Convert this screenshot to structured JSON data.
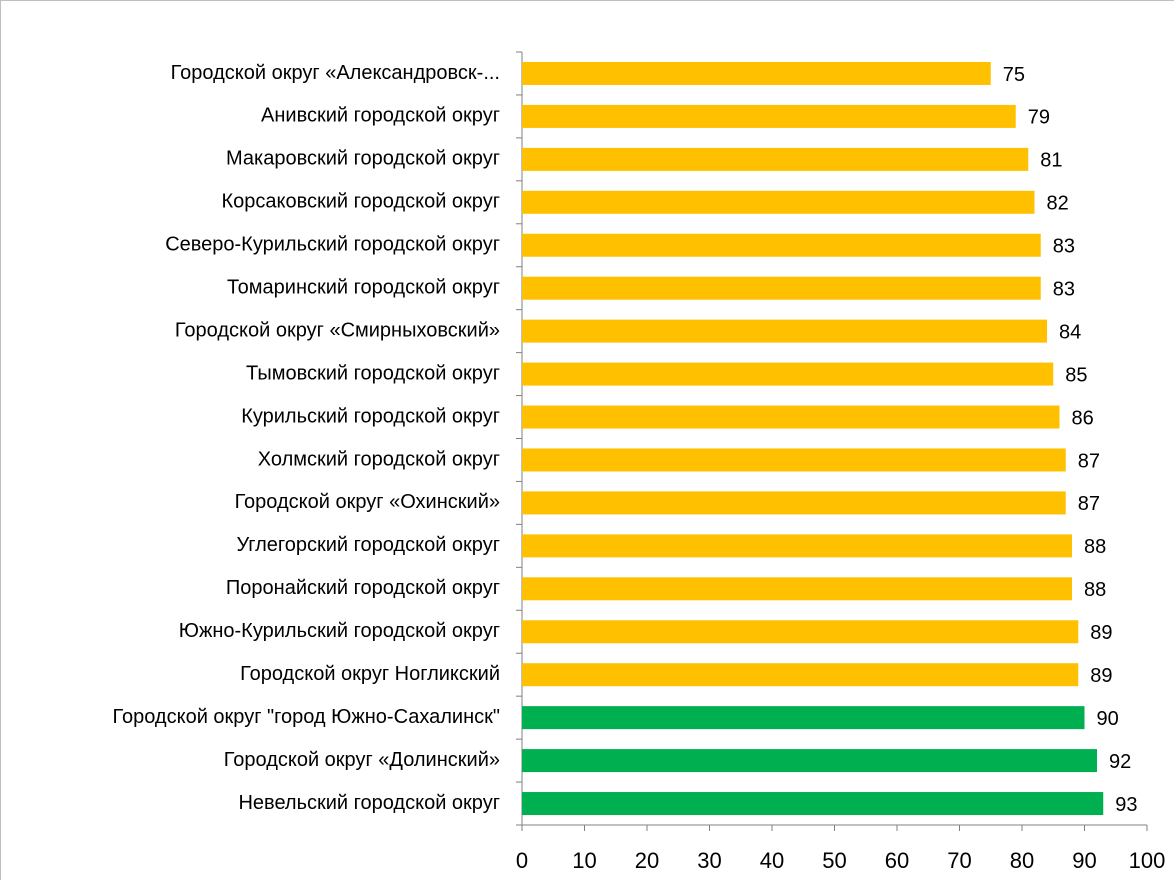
{
  "chart_data": {
    "type": "barh",
    "categories": [
      "Городской округ «Александровск-...",
      "Анивский городской округ",
      "Макаровский городской округ",
      "Корсаковский городской округ",
      "Северо-Курильский городской округ",
      "Томаринский городской округ",
      "Городской округ «Смирныховский»",
      "Тымовский городской округ",
      "Курильский городской округ",
      "Холмский городской округ",
      "Городской округ «Охинский»",
      "Углегорский городской округ",
      "Поронайский городской округ",
      "Южно-Курильский городской округ",
      "Городской округ Ногликский",
      "Городской округ \"город Южно-Сахалинск\"",
      "Городской округ «Долинский»",
      "Невельский городской округ"
    ],
    "values": [
      75,
      79,
      81,
      82,
      83,
      83,
      84,
      85,
      86,
      87,
      87,
      88,
      88,
      89,
      89,
      90,
      92,
      93
    ],
    "colors": [
      "#ffc000",
      "#ffc000",
      "#ffc000",
      "#ffc000",
      "#ffc000",
      "#ffc000",
      "#ffc000",
      "#ffc000",
      "#ffc000",
      "#ffc000",
      "#ffc000",
      "#ffc000",
      "#ffc000",
      "#ffc000",
      "#ffc000",
      "#00b050",
      "#00b050",
      "#00b050"
    ],
    "xlim": [
      0,
      100
    ],
    "xticks": [
      0,
      10,
      20,
      30,
      40,
      50,
      60,
      70,
      80,
      90,
      100
    ],
    "grid": false
  }
}
